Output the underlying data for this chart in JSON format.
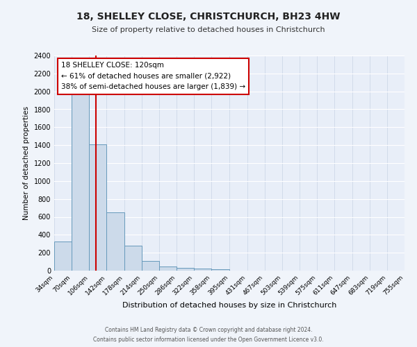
{
  "title": "18, SHELLEY CLOSE, CHRISTCHURCH, BH23 4HW",
  "subtitle": "Size of property relative to detached houses in Christchurch",
  "xlabel": "Distribution of detached houses by size in Christchurch",
  "ylabel": "Number of detached properties",
  "bar_color": "#ccdaea",
  "bar_edge_color": "#6699bb",
  "fig_background": "#f0f4fa",
  "ax_background": "#e8eef8",
  "grid_color": "#d0d8e8",
  "marker_line_color": "#cc0000",
  "marker_value": 120,
  "annotation_title": "18 SHELLEY CLOSE: 120sqm",
  "annotation_line1": "← 61% of detached houses are smaller (2,922)",
  "annotation_line2": "38% of semi-detached houses are larger (1,839) →",
  "footer_line1": "Contains HM Land Registry data © Crown copyright and database right 2024.",
  "footer_line2": "Contains public sector information licensed under the Open Government Licence v3.0.",
  "bin_edges": [
    34,
    70,
    106,
    142,
    178,
    214,
    250,
    286,
    322,
    358,
    395,
    431,
    467,
    503,
    539,
    575,
    611,
    647,
    683,
    719,
    755
  ],
  "bin_counts": [
    325,
    1975,
    1410,
    650,
    280,
    105,
    45,
    30,
    20,
    15,
    0,
    0,
    0,
    0,
    0,
    0,
    0,
    0,
    0,
    0
  ],
  "ylim": [
    0,
    2400
  ],
  "yticks": [
    0,
    200,
    400,
    600,
    800,
    1000,
    1200,
    1400,
    1600,
    1800,
    2000,
    2200,
    2400
  ]
}
